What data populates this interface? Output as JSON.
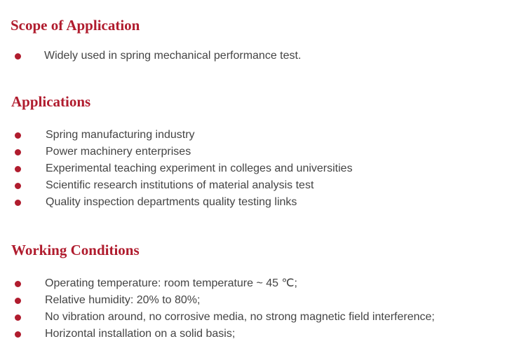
{
  "accent_color": "#b01c2e",
  "sections": [
    {
      "title": "Scope of Application",
      "items": [
        "Widely used in spring mechanical performance test."
      ]
    },
    {
      "title": "Applications",
      "items": [
        "Spring manufacturing industry",
        "Power machinery enterprises",
        "Experimental teaching experiment in colleges and universities",
        "Scientific research institutions of material analysis test",
        "Quality inspection departments quality testing links"
      ]
    },
    {
      "title": "Working Conditions",
      "items": [
        "Operating temperature: room temperature ~ 45 ℃;",
        "Relative humidity: 20% to 80%;",
        "No vibration around, no corrosive media, no strong magnetic field interference;",
        "Horizontal installation on a solid basis;"
      ]
    }
  ]
}
